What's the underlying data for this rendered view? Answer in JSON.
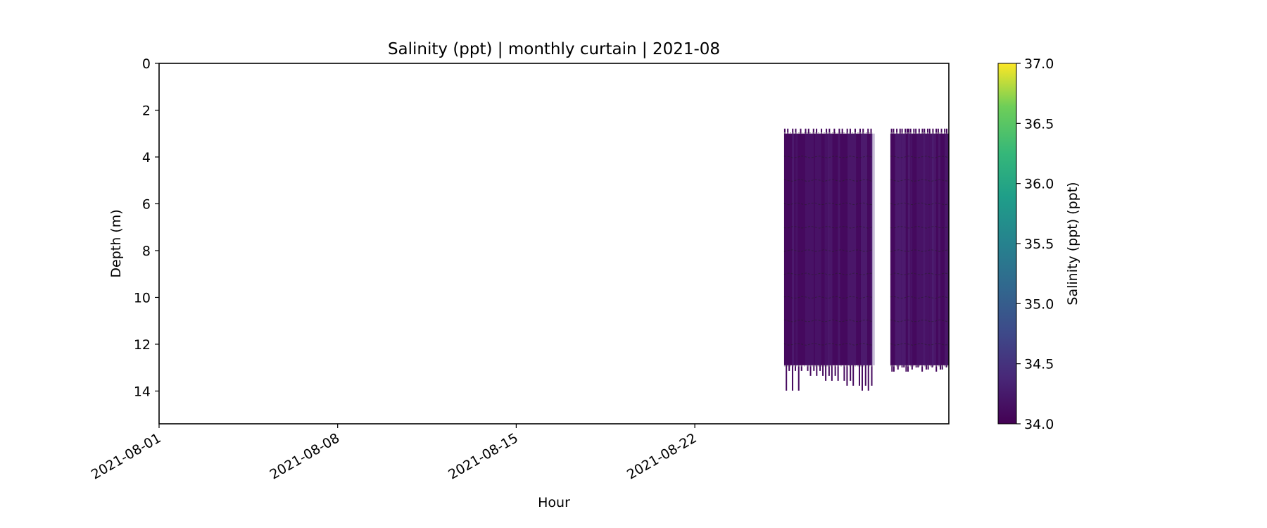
{
  "chart_data": {
    "type": "heatmap",
    "title": "Salinity (ppt) | monthly curtain | 2021-08",
    "xlabel": "Hour",
    "ylabel": "Depth (m)",
    "x_ticks": [
      "2021-08-01",
      "2021-08-08",
      "2021-08-15",
      "2021-08-22"
    ],
    "xlim": [
      "2021-08-01",
      "2021-08-31T23:00"
    ],
    "y_ticks": [
      0,
      2,
      4,
      6,
      8,
      10,
      12,
      14
    ],
    "ylim": [
      15.4,
      0
    ],
    "y_inverted": true,
    "colorbar": {
      "label": "Salinity (ppt) (ppt)",
      "colormap": "viridis",
      "vmin": 34.0,
      "vmax": 37.0,
      "ticks": [
        34.0,
        34.5,
        35.0,
        35.5,
        36.0,
        36.5,
        37.0
      ],
      "tick_labels": [
        "34.0",
        "34.5",
        "35.0",
        "35.5",
        "36.0",
        "36.5",
        "37.0"
      ]
    },
    "blocks": [
      {
        "start": "2021-08-25T12:00",
        "end": "2021-08-28T23:00",
        "depth_top": 3.0,
        "depth_bottom": 12.9,
        "salinity": 34.15
      },
      {
        "start": "2021-08-29T16:00",
        "end": "2021-08-31T23:00",
        "depth_top": 3.0,
        "depth_bottom": 12.9,
        "salinity": 34.1
      }
    ],
    "profile_depths": [
      4,
      5,
      6,
      7,
      8,
      9,
      10,
      11,
      12
    ],
    "grid": false,
    "colors": {
      "low": "#440154",
      "mid": "#21918c",
      "high": "#fde725",
      "block_fill": "#45095e",
      "trace": "#222222"
    }
  }
}
